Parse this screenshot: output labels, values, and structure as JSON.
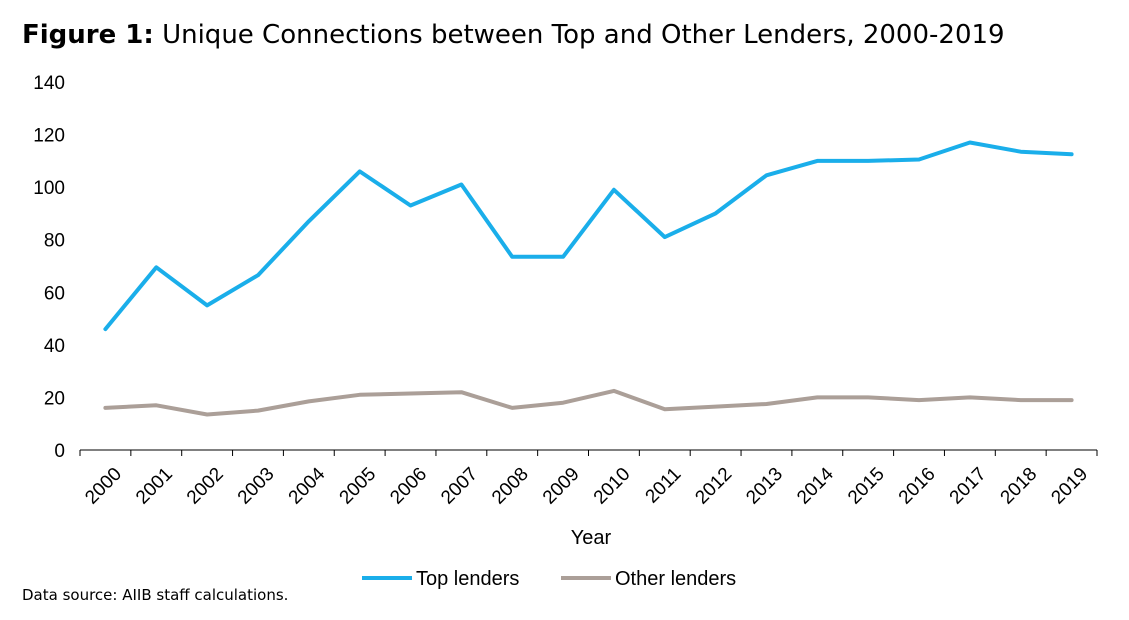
{
  "figure": {
    "label": "Figure 1",
    "separator": ":",
    "caption": " Unique Connections between Top and Other Lenders, 2000-2019"
  },
  "source_note": "Data source: AIIB staff calculations.",
  "colors": {
    "top_lenders": "#1aaeea",
    "other_lenders": "#ab9f98",
    "axis": "#000000"
  },
  "chart_data": {
    "type": "line",
    "title": "Unique Connections between Top and Other Lenders, 2000-2019",
    "xlabel": "Year",
    "ylabel": "",
    "ylim": [
      0,
      140
    ],
    "yticks": [
      "0",
      "20",
      "40",
      "60",
      "80",
      "100",
      "120",
      "140"
    ],
    "categories": [
      "2000",
      "2001",
      "2002",
      "2003",
      "2004",
      "2005",
      "2006",
      "2007",
      "2008",
      "2009",
      "2010",
      "2011",
      "2012",
      "2013",
      "2014",
      "2015",
      "2016",
      "2017",
      "2018",
      "2019"
    ],
    "grid": false,
    "legend_position": "bottom",
    "series": [
      {
        "name": "Top lenders",
        "color": "#1aaeea",
        "values": [
          46,
          69.5,
          55,
          66.5,
          87,
          106,
          93,
          101,
          73.5,
          73.5,
          99,
          81,
          90,
          104.5,
          110,
          110,
          110.5,
          117,
          113.5,
          112.5
        ]
      },
      {
        "name": "Other lenders",
        "color": "#ab9f98",
        "values": [
          16,
          17,
          13.5,
          15,
          18.5,
          21,
          21.5,
          22,
          16,
          18,
          22.5,
          15.5,
          16.5,
          17.5,
          20,
          20,
          19,
          20,
          19,
          19
        ]
      }
    ]
  }
}
